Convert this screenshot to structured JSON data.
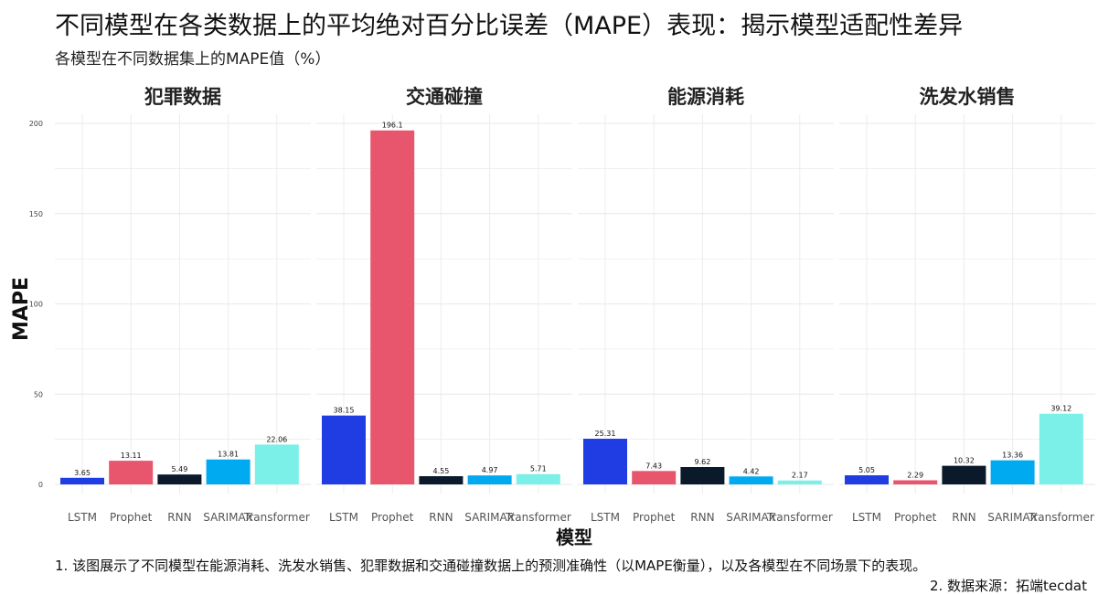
{
  "title": "不同模型在各类数据上的平均绝对百分比误差（MAPE）表现：揭示模型适配性差异",
  "subtitle": "各模型在不同数据集上的MAPE值（%）",
  "footnotes": [
    "1. 该图展示了不同模型在能源消耗、洗发水销售、犯罪数据和交通碰撞数据上的预测准确性（以MAPE衡量），以及各模型在不同场景下的表现。",
    "2. 数据来源：拓端tecdat"
  ],
  "colors": {
    "LSTM": "#1f3de3",
    "Prophet": "#e8566e",
    "RNN": "#0a1a2a",
    "SARIMAX": "#00aaf0",
    "Transformer": "#7af0e8"
  },
  "chart_data": {
    "type": "bar",
    "xlabel": "模型",
    "ylabel": "MAPE",
    "ylim": [
      0,
      206
    ],
    "yticks": [
      0,
      50,
      100,
      150,
      200
    ],
    "grid": true,
    "categories": [
      "LSTM",
      "Prophet",
      "RNN",
      "SARIMAX",
      "Transformer"
    ],
    "facets": [
      {
        "name": "犯罪数据",
        "values": [
          3.65,
          13.11,
          5.49,
          13.81,
          22.06
        ],
        "labels": [
          "3.65",
          "13.11",
          "5.49",
          "13.81",
          "22.06"
        ]
      },
      {
        "name": "交通碰撞",
        "values": [
          38.15,
          196.1,
          4.55,
          4.97,
          5.71
        ],
        "labels": [
          "38.15",
          "196.1",
          "4.55",
          "4.97",
          "5.71"
        ]
      },
      {
        "name": "能源消耗",
        "values": [
          25.31,
          7.43,
          9.62,
          4.42,
          2.17
        ],
        "labels": [
          "25.31",
          "7.43",
          "9.62",
          "4.42",
          "2.17"
        ]
      },
      {
        "name": "洗发水销售",
        "values": [
          5.05,
          2.29,
          10.32,
          13.36,
          39.12
        ],
        "labels": [
          "5.05",
          "2.29",
          "10.32",
          "13.36",
          "39.12"
        ]
      }
    ]
  }
}
